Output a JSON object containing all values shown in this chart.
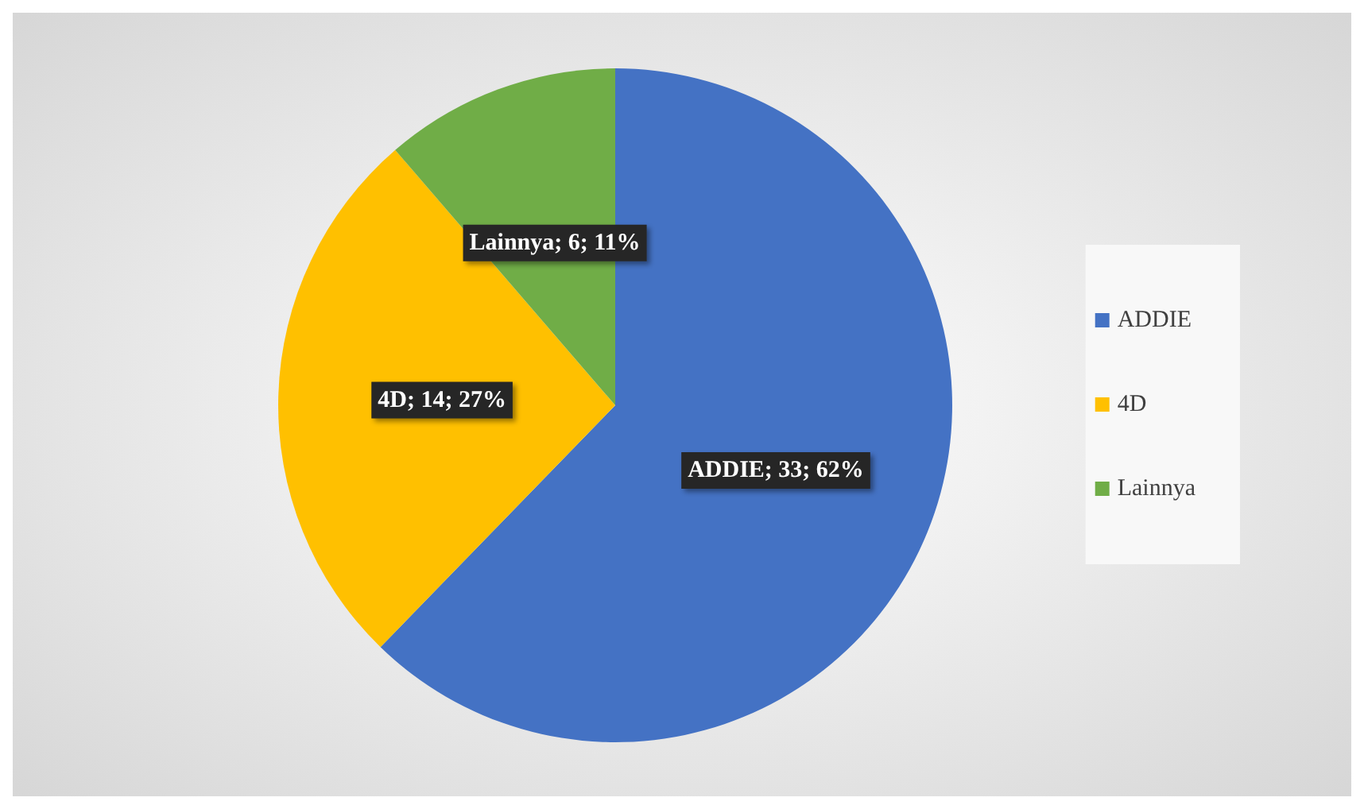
{
  "chart_data": {
    "type": "pie",
    "categories": [
      "ADDIE",
      "4D",
      "Lainnya"
    ],
    "values": [
      33,
      14,
      6
    ],
    "colors": [
      "#4472c4",
      "#ffc000",
      "#70ad47"
    ],
    "value_labels": [
      "ADDIE; 33; 62%",
      "4D; 14; 27%",
      "Lainnya; 6; 11%"
    ],
    "legend": "right"
  }
}
